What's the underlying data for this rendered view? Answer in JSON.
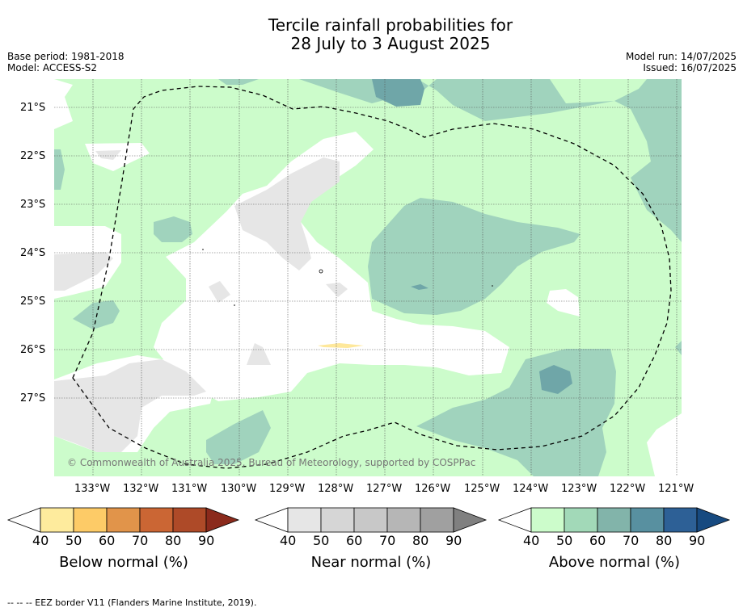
{
  "title": {
    "line1": "Tercile rainfall probabilities for",
    "line2": "28 July to 3 August 2025"
  },
  "meta": {
    "base_period": "Base period: 1981-2018",
    "model": "Model: ACCESS-S2",
    "model_run": "Model run: 14/07/2025",
    "issued": "Issued: 16/07/2025"
  },
  "map": {
    "copyright": "© Commonwealth of Australia 2025, Bureau of Meteorology, supported by COSPPac",
    "lat_labels": [
      "21°S",
      "22°S",
      "23°S",
      "24°S",
      "25°S",
      "26°S",
      "27°S"
    ],
    "lon_labels": [
      "133°W",
      "132°W",
      "131°W",
      "130°W",
      "129°W",
      "128°W",
      "127°W",
      "126°W",
      "125°W",
      "124°W",
      "123°W",
      "122°W",
      "121°W"
    ],
    "colors": {
      "above_40": "#ccfccb",
      "above_50": "#a0d3bd",
      "above_60": "#6fa6a8",
      "near_40": "#e6e6e6",
      "below_40": "#fee89b",
      "grid": "#555555",
      "eez": "#000000"
    }
  },
  "colorbars": {
    "tick_labels": [
      "40",
      "50",
      "60",
      "70",
      "80",
      "90"
    ],
    "below": {
      "title": "Below normal (%)",
      "colors": [
        "#ffffff",
        "#feeb9d",
        "#fdcb67",
        "#e1944a",
        "#cb6634",
        "#ae4a28",
        "#8b2a1c"
      ]
    },
    "near": {
      "title": "Near normal (%)",
      "colors": [
        "#ffffff",
        "#e6e6e6",
        "#d6d6d6",
        "#c8c8c8",
        "#b6b6b6",
        "#a0a0a0",
        "#808080"
      ]
    },
    "above": {
      "title": "Above normal (%)",
      "colors": [
        "#ffffff",
        "#ccfccb",
        "#a2d9b8",
        "#82b4aa",
        "#5890a0",
        "#2d6096",
        "#174a80"
      ]
    }
  },
  "footer": "--  --  -- EEZ border V11 (Flanders Marine Institute, 2019)."
}
